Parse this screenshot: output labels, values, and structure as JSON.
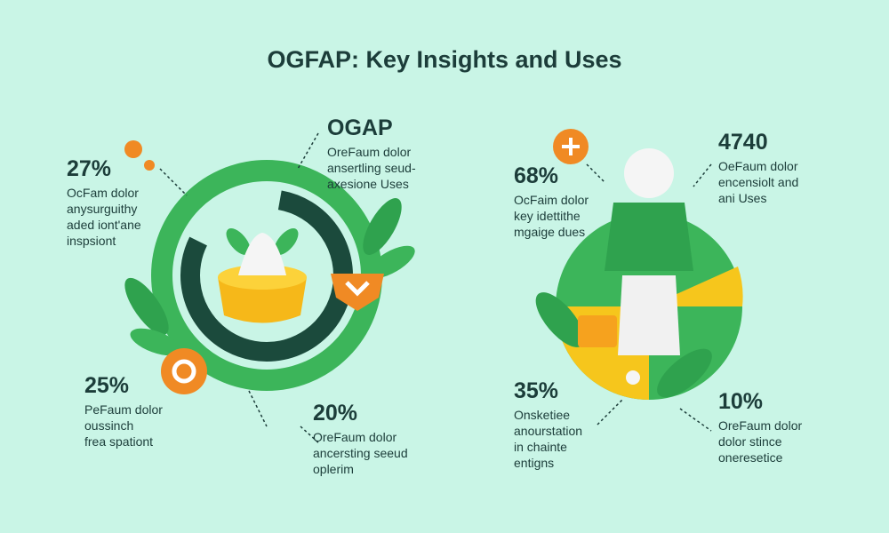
{
  "header": {
    "title": "OGFAP: Key Insights and Uses"
  },
  "callouts": [
    {
      "value": "27%",
      "lines": [
        "OcFam dolor",
        "anysurguithy",
        "aded iont'ane",
        "inspsiont"
      ]
    },
    {
      "value": "OGAP",
      "lines": [
        "OreFaum dolor",
        "ansertling seud-",
        "axesione Uses"
      ]
    },
    {
      "value": "25%",
      "lines": [
        "PeFaum dolor",
        "oussinch",
        "frea spationt"
      ]
    },
    {
      "value": "20%",
      "lines": [
        "OreFaum dolor",
        "ancersting seeud",
        "oplerim"
      ]
    },
    {
      "value": "68%",
      "lines": [
        "OcFaim dolor",
        "key idettithe",
        "mgaige dues"
      ]
    },
    {
      "value": "4740",
      "lines": [
        "OeFaum dolor",
        "encensiolt and",
        "ani Uses"
      ]
    },
    {
      "value": "35%",
      "lines": [
        "Onsketiee",
        "anourstation",
        "in chainte",
        "entigns"
      ]
    },
    {
      "value": "10%",
      "lines": [
        "OreFaum dolor",
        "dolor stince",
        "oneresetice"
      ]
    }
  ]
}
